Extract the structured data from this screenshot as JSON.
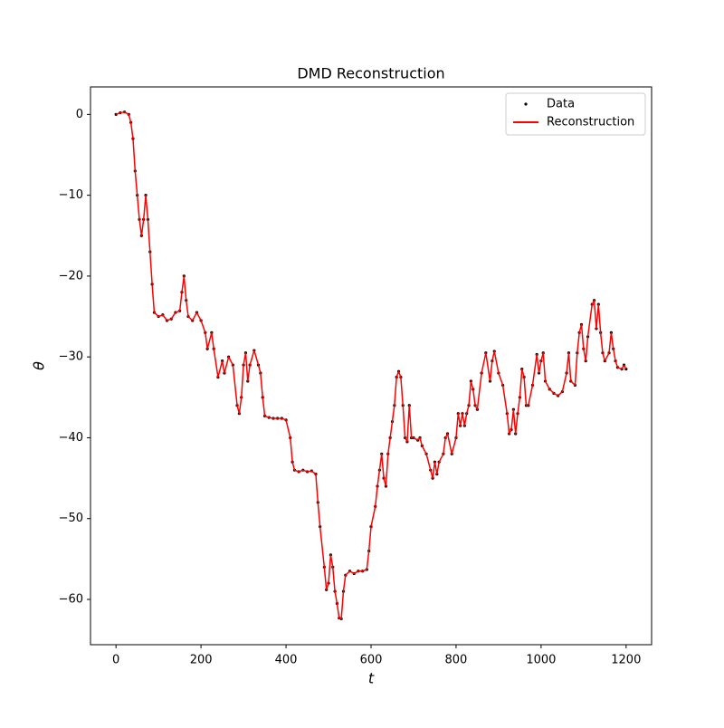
{
  "chart_data": {
    "type": "line",
    "title": "DMD Reconstruction",
    "x_label": "t",
    "y_label": "θ",
    "x": [
      0,
      10,
      20,
      30,
      35,
      40,
      45,
      50,
      55,
      60,
      65,
      70,
      75,
      80,
      85,
      90,
      100,
      110,
      120,
      130,
      140,
      150,
      155,
      160,
      165,
      170,
      180,
      190,
      200,
      210,
      215,
      225,
      230,
      240,
      250,
      255,
      265,
      275,
      285,
      290,
      295,
      300,
      305,
      310,
      315,
      325,
      335,
      340,
      345,
      350,
      360,
      370,
      380,
      390,
      400,
      410,
      415,
      420,
      430,
      440,
      450,
      460,
      470,
      475,
      480,
      490,
      495,
      500,
      505,
      510,
      515,
      520,
      525,
      530,
      535,
      540,
      550,
      560,
      570,
      580,
      590,
      595,
      600,
      610,
      615,
      620,
      625,
      630,
      635,
      640,
      645,
      650,
      655,
      660,
      665,
      670,
      675,
      680,
      685,
      690,
      695,
      700,
      710,
      715,
      720,
      730,
      740,
      745,
      750,
      755,
      760,
      770,
      775,
      780,
      790,
      800,
      805,
      810,
      815,
      820,
      825,
      830,
      835,
      840,
      845,
      850,
      860,
      870,
      880,
      885,
      890,
      900,
      910,
      920,
      925,
      930,
      935,
      940,
      945,
      950,
      955,
      960,
      965,
      970,
      980,
      990,
      995,
      1000,
      1005,
      1010,
      1020,
      1030,
      1040,
      1050,
      1060,
      1065,
      1070,
      1080,
      1085,
      1090,
      1095,
      1100,
      1105,
      1110,
      1120,
      1125,
      1130,
      1135,
      1140,
      1145,
      1150,
      1160,
      1165,
      1170,
      1175,
      1180,
      1190,
      1195,
      1200
    ],
    "series": [
      {
        "name": "Data",
        "color": "#000000",
        "style": "points",
        "values": [
          0,
          0.2,
          0.3,
          0,
          -1,
          -3,
          -7,
          -10,
          -13,
          -15,
          -13,
          -10,
          -13,
          -17,
          -21,
          -24.5,
          -25,
          -24.8,
          -25.5,
          -25.3,
          -24.5,
          -24.3,
          -22,
          -20,
          -23,
          -25,
          -25.5,
          -24.5,
          -25.5,
          -27,
          -29,
          -27,
          -29,
          -32.5,
          -30.5,
          -32,
          -30,
          -31,
          -36,
          -37,
          -35,
          -31,
          -29.5,
          -33,
          -31,
          -29.2,
          -31,
          -32,
          -35,
          -37.3,
          -37.5,
          -37.6,
          -37.6,
          -37.6,
          -37.8,
          -40,
          -43,
          -44,
          -44.2,
          -44,
          -44.2,
          -44.1,
          -44.5,
          -48,
          -51,
          -56,
          -58.8,
          -58,
          -54.5,
          -56,
          -59,
          -60.5,
          -62.3,
          -62.4,
          -59,
          -57,
          -56.5,
          -56.8,
          -56.5,
          -56.5,
          -56.3,
          -54,
          -51,
          -48.5,
          -46,
          -44,
          -42,
          -45,
          -46,
          -42,
          -40,
          -38,
          -36,
          -32.5,
          -31.8,
          -32.5,
          -36,
          -40,
          -40.5,
          -36,
          -40,
          -40,
          -40.3,
          -40,
          -41,
          -42,
          -44,
          -45,
          -43,
          -44.5,
          -43,
          -42,
          -40,
          -39.5,
          -42,
          -40,
          -37,
          -38.5,
          -37,
          -38.5,
          -37,
          -36,
          -33,
          -34,
          -36,
          -36.5,
          -32,
          -29.5,
          -33,
          -30.5,
          -29.3,
          -32,
          -33.5,
          -37,
          -39.5,
          -39,
          -36.5,
          -39.5,
          -37,
          -35,
          -31.5,
          -32.5,
          -36,
          -36,
          -33.5,
          -29.7,
          -32,
          -30.5,
          -29.5,
          -33,
          -34,
          -34.5,
          -34.8,
          -34.3,
          -32,
          -29.5,
          -33,
          -33.5,
          -29.5,
          -27,
          -26,
          -29,
          -30.5,
          -27.5,
          -23.5,
          -23,
          -26.5,
          -23.5,
          -27,
          -29.5,
          -30.5,
          -29.5,
          -27,
          -29,
          -30.5,
          -31.3,
          -31.5,
          -31,
          -31.5
        ]
      },
      {
        "name": "Reconstruction",
        "color": "#ff0000",
        "style": "line",
        "values": [
          0,
          0.2,
          0.3,
          0,
          -1,
          -3,
          -7,
          -10,
          -13,
          -15,
          -13,
          -10,
          -13,
          -17,
          -21,
          -24.5,
          -25,
          -24.8,
          -25.5,
          -25.3,
          -24.5,
          -24.3,
          -22,
          -20,
          -23,
          -25,
          -25.5,
          -24.5,
          -25.5,
          -27,
          -29,
          -27,
          -29,
          -32.5,
          -30.5,
          -32,
          -30,
          -31,
          -36,
          -37,
          -35,
          -31,
          -29.5,
          -33,
          -31,
          -29.2,
          -31,
          -32,
          -35,
          -37.3,
          -37.5,
          -37.6,
          -37.6,
          -37.6,
          -37.8,
          -40,
          -43,
          -44,
          -44.2,
          -44,
          -44.2,
          -44.1,
          -44.5,
          -48,
          -51,
          -56,
          -58.8,
          -58,
          -54.5,
          -56,
          -59,
          -60.5,
          -62.3,
          -62.4,
          -59,
          -57,
          -56.5,
          -56.8,
          -56.5,
          -56.5,
          -56.3,
          -54,
          -51,
          -48.5,
          -46,
          -44,
          -42,
          -45,
          -46,
          -42,
          -40,
          -38,
          -36,
          -32.5,
          -31.8,
          -32.5,
          -36,
          -40,
          -40.5,
          -36,
          -40,
          -40,
          -40.3,
          -40,
          -41,
          -42,
          -44,
          -45,
          -43,
          -44.5,
          -43,
          -42,
          -40,
          -39.5,
          -42,
          -40,
          -37,
          -38.5,
          -37,
          -38.5,
          -37,
          -36,
          -33,
          -34,
          -36,
          -36.5,
          -32,
          -29.5,
          -33,
          -30.5,
          -29.3,
          -32,
          -33.5,
          -37,
          -39.5,
          -39,
          -36.5,
          -39.5,
          -37,
          -35,
          -31.5,
          -32.5,
          -36,
          -36,
          -33.5,
          -29.7,
          -32,
          -30.5,
          -29.5,
          -33,
          -34,
          -34.5,
          -34.8,
          -34.3,
          -32,
          -29.5,
          -33,
          -33.5,
          -29.5,
          -27,
          -26,
          -29,
          -30.5,
          -27.5,
          -23.5,
          -23,
          -26.5,
          -23.5,
          -27,
          -29.5,
          -30.5,
          -29.5,
          -27,
          -29,
          -30.5,
          -31.3,
          -31.5,
          -31,
          -31.5
        ]
      }
    ],
    "xlim": [
      -60,
      1260
    ],
    "ylim": [
      -65.6,
      3.4
    ],
    "xticks": [
      0,
      200,
      400,
      600,
      800,
      1000,
      1200
    ],
    "yticks": [
      0,
      {
        "value": -10,
        "label": "−10"
      },
      {
        "value": -20,
        "label": "−20"
      },
      {
        "value": -30,
        "label": "−30"
      },
      {
        "value": -40,
        "label": "−40"
      },
      {
        "value": -50,
        "label": "−50"
      },
      {
        "value": -60,
        "label": "−60"
      }
    ],
    "grid": false,
    "legend": "upper right"
  }
}
